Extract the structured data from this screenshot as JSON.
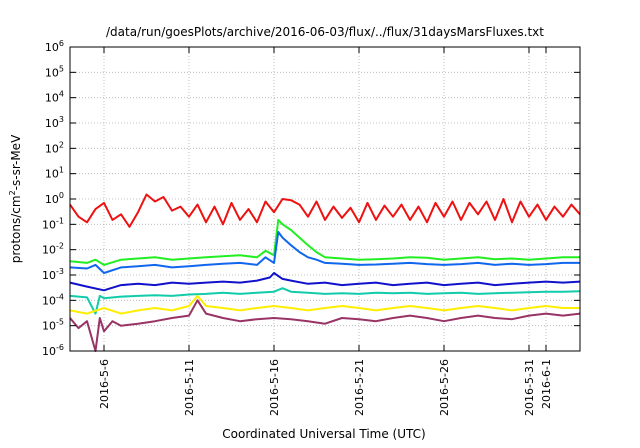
{
  "chart_data": {
    "type": "line",
    "title": "/data/run/goesPlots/archive/2016-06-03/flux/../flux/31daysMarsFluxes.txt",
    "xlabel": "Coordinated Universal Time (UTC)",
    "ylabel_base": "protons/cm",
    "ylabel_sup": "2",
    "ylabel_rest": "-s-sr-MeV",
    "yscale": "log",
    "ylim": [
      1e-06,
      1000000.0
    ],
    "xlim": [
      "2016-05-04",
      "2016-06-03"
    ],
    "grid": true,
    "y_ticks": [
      {
        "value": -6,
        "base": "10",
        "exp": "-6"
      },
      {
        "value": -5,
        "base": "10",
        "exp": "-5"
      },
      {
        "value": -4,
        "base": "10",
        "exp": "-4"
      },
      {
        "value": -3,
        "base": "10",
        "exp": "-3"
      },
      {
        "value": -2,
        "base": "10",
        "exp": "-2"
      },
      {
        "value": -1,
        "base": "10",
        "exp": "-1"
      },
      {
        "value": 0,
        "base": "10",
        "exp": "0"
      },
      {
        "value": 1,
        "base": "10",
        "exp": "1"
      },
      {
        "value": 2,
        "base": "10",
        "exp": "2"
      },
      {
        "value": 3,
        "base": "10",
        "exp": "3"
      },
      {
        "value": 4,
        "base": "10",
        "exp": "4"
      },
      {
        "value": 5,
        "base": "10",
        "exp": "5"
      },
      {
        "value": 6,
        "base": "10",
        "exp": "6"
      }
    ],
    "x_ticks": [
      {
        "date": "2016-05-06",
        "label": "2016-5-6"
      },
      {
        "date": "2016-05-11",
        "label": "2016-5-11"
      },
      {
        "date": "2016-05-16",
        "label": "2016-5-16"
      },
      {
        "date": "2016-05-21",
        "label": "2016-5-21"
      },
      {
        "date": "2016-05-26",
        "label": "2016-5-26"
      },
      {
        "date": "2016-05-31",
        "label": "2016-5-31"
      },
      {
        "date": "2016-06-01",
        "label": "2016-6-1"
      }
    ],
    "series": [
      {
        "color": "#ee1111",
        "width": 2,
        "x": [
          "2016-05-04T00:00",
          "2016-05-04T12:00",
          "2016-05-05T00:00",
          "2016-05-05T12:00",
          "2016-05-06T00:00",
          "2016-05-06T12:00",
          "2016-05-07T00:00",
          "2016-05-07T12:00",
          "2016-05-08T00:00",
          "2016-05-08T12:00",
          "2016-05-09T00:00",
          "2016-05-09T12:00",
          "2016-05-10T00:00",
          "2016-05-10T12:00",
          "2016-05-11T00:00",
          "2016-05-11T12:00",
          "2016-05-12T00:00",
          "2016-05-12T12:00",
          "2016-05-13T00:00",
          "2016-05-13T12:00",
          "2016-05-14T00:00",
          "2016-05-14T12:00",
          "2016-05-15T00:00",
          "2016-05-15T12:00",
          "2016-05-16T00:00",
          "2016-05-16T12:00",
          "2016-05-17T00:00",
          "2016-05-17T12:00",
          "2016-05-18T00:00",
          "2016-05-18T12:00",
          "2016-05-19T00:00",
          "2016-05-19T12:00",
          "2016-05-20T00:00",
          "2016-05-20T12:00",
          "2016-05-21T00:00",
          "2016-05-21T12:00",
          "2016-05-22T00:00",
          "2016-05-22T12:00",
          "2016-05-23T00:00",
          "2016-05-23T12:00",
          "2016-05-24T00:00",
          "2016-05-24T12:00",
          "2016-05-25T00:00",
          "2016-05-25T12:00",
          "2016-05-26T00:00",
          "2016-05-26T12:00",
          "2016-05-27T00:00",
          "2016-05-27T12:00",
          "2016-05-28T00:00",
          "2016-05-28T12:00",
          "2016-05-29T00:00",
          "2016-05-29T12:00",
          "2016-05-30T00:00",
          "2016-05-30T12:00",
          "2016-05-31T00:00",
          "2016-05-31T12:00",
          "2016-06-01T00:00",
          "2016-06-01T12:00",
          "2016-06-02T00:00",
          "2016-06-02T12:00",
          "2016-06-03T00:00"
        ],
        "y": [
          0.6,
          0.2,
          0.12,
          0.4,
          0.7,
          0.15,
          0.25,
          0.08,
          0.3,
          1.5,
          0.8,
          1.2,
          0.35,
          0.5,
          0.2,
          0.6,
          0.12,
          0.5,
          0.1,
          0.7,
          0.15,
          0.4,
          0.12,
          0.8,
          0.3,
          1.0,
          0.9,
          0.6,
          0.2,
          0.8,
          0.15,
          0.5,
          0.18,
          0.45,
          0.12,
          0.7,
          0.15,
          0.55,
          0.2,
          0.6,
          0.15,
          0.5,
          0.12,
          0.7,
          0.2,
          0.8,
          0.15,
          0.7,
          0.25,
          0.8,
          0.15,
          1.0,
          0.12,
          0.8,
          0.2,
          0.6,
          0.15,
          0.5,
          0.2,
          0.6,
          0.25
        ]
      },
      {
        "color": "#22ee22",
        "width": 2,
        "x": [
          "2016-05-04T00:00",
          "2016-05-05T00:00",
          "2016-05-05T12:00",
          "2016-05-06T00:00",
          "2016-05-07T00:00",
          "2016-05-08T00:00",
          "2016-05-09T00:00",
          "2016-05-10T00:00",
          "2016-05-11T00:00",
          "2016-05-12T00:00",
          "2016-05-13T00:00",
          "2016-05-14T00:00",
          "2016-05-15T00:00",
          "2016-05-15T12:00",
          "2016-05-16T00:00",
          "2016-05-16T06:00",
          "2016-05-16T12:00",
          "2016-05-17T00:00",
          "2016-05-17T12:00",
          "2016-05-18T00:00",
          "2016-05-18T12:00",
          "2016-05-19T00:00",
          "2016-05-20T00:00",
          "2016-05-21T00:00",
          "2016-05-22T00:00",
          "2016-05-23T00:00",
          "2016-05-24T00:00",
          "2016-05-25T00:00",
          "2016-05-26T00:00",
          "2016-05-27T00:00",
          "2016-05-28T00:00",
          "2016-05-29T00:00",
          "2016-05-30T00:00",
          "2016-05-31T00:00",
          "2016-06-01T00:00",
          "2016-06-02T00:00",
          "2016-06-03T00:00"
        ],
        "y": [
          0.0035,
          0.003,
          0.004,
          0.0025,
          0.004,
          0.0045,
          0.005,
          0.004,
          0.0045,
          0.005,
          0.0055,
          0.006,
          0.005,
          0.009,
          0.006,
          0.15,
          0.1,
          0.06,
          0.03,
          0.015,
          0.008,
          0.005,
          0.0045,
          0.004,
          0.0042,
          0.0045,
          0.005,
          0.0048,
          0.004,
          0.0045,
          0.005,
          0.0042,
          0.0045,
          0.004,
          0.0045,
          0.005,
          0.005
        ]
      },
      {
        "color": "#1166ee",
        "width": 2,
        "x": [
          "2016-05-04T00:00",
          "2016-05-05T00:00",
          "2016-05-05T12:00",
          "2016-05-06T00:00",
          "2016-05-07T00:00",
          "2016-05-08T00:00",
          "2016-05-09T00:00",
          "2016-05-10T00:00",
          "2016-05-11T00:00",
          "2016-05-12T00:00",
          "2016-05-13T00:00",
          "2016-05-14T00:00",
          "2016-05-15T00:00",
          "2016-05-15T12:00",
          "2016-05-16T00:00",
          "2016-05-16T06:00",
          "2016-05-16T12:00",
          "2016-05-17T00:00",
          "2016-05-17T12:00",
          "2016-05-18T00:00",
          "2016-05-18T12:00",
          "2016-05-19T00:00",
          "2016-05-20T00:00",
          "2016-05-21T00:00",
          "2016-05-22T00:00",
          "2016-05-23T00:00",
          "2016-05-24T00:00",
          "2016-05-25T00:00",
          "2016-05-26T00:00",
          "2016-05-27T00:00",
          "2016-05-28T00:00",
          "2016-05-29T00:00",
          "2016-05-30T00:00",
          "2016-05-31T00:00",
          "2016-06-01T00:00",
          "2016-06-02T00:00",
          "2016-06-03T00:00"
        ],
        "y": [
          0.002,
          0.0018,
          0.0025,
          0.0012,
          0.002,
          0.0022,
          0.0025,
          0.002,
          0.0022,
          0.0025,
          0.0028,
          0.003,
          0.0025,
          0.005,
          0.003,
          0.05,
          0.03,
          0.015,
          0.008,
          0.005,
          0.004,
          0.003,
          0.0028,
          0.0025,
          0.0026,
          0.0028,
          0.003,
          0.0027,
          0.0025,
          0.0027,
          0.003,
          0.0025,
          0.0028,
          0.0025,
          0.0027,
          0.003,
          0.003
        ]
      },
      {
        "color": "#1111cc",
        "width": 2,
        "x": [
          "2016-05-04T00:00",
          "2016-05-05T00:00",
          "2016-05-06T00:00",
          "2016-05-07T00:00",
          "2016-05-08T00:00",
          "2016-05-09T00:00",
          "2016-05-10T00:00",
          "2016-05-11T00:00",
          "2016-05-12T00:00",
          "2016-05-13T00:00",
          "2016-05-14T00:00",
          "2016-05-15T00:00",
          "2016-05-15T18:00",
          "2016-05-16T00:00",
          "2016-05-16T12:00",
          "2016-05-17T00:00",
          "2016-05-18T00:00",
          "2016-05-19T00:00",
          "2016-05-20T00:00",
          "2016-05-21T00:00",
          "2016-05-22T00:00",
          "2016-05-23T00:00",
          "2016-05-24T00:00",
          "2016-05-25T00:00",
          "2016-05-26T00:00",
          "2016-05-27T00:00",
          "2016-05-28T00:00",
          "2016-05-29T00:00",
          "2016-05-30T00:00",
          "2016-05-31T00:00",
          "2016-06-01T00:00",
          "2016-06-02T00:00",
          "2016-06-03T00:00"
        ],
        "y": [
          0.0005,
          0.00035,
          0.00025,
          0.0004,
          0.00045,
          0.0004,
          0.0005,
          0.00045,
          0.0005,
          0.00055,
          0.0005,
          0.0006,
          0.0008,
          0.0012,
          0.0007,
          0.0006,
          0.00045,
          0.0005,
          0.0004,
          0.00045,
          0.0005,
          0.0004,
          0.00045,
          0.0005,
          0.0004,
          0.00045,
          0.0005,
          0.0004,
          0.00045,
          0.0005,
          0.00055,
          0.0005,
          0.00055
        ]
      },
      {
        "color": "#11ccaa",
        "width": 2,
        "x": [
          "2016-05-04T00:00",
          "2016-05-05T00:00",
          "2016-05-05T12:00",
          "2016-05-05T18:00",
          "2016-05-06T00:00",
          "2016-05-07T00:00",
          "2016-05-08T00:00",
          "2016-05-09T00:00",
          "2016-05-10T00:00",
          "2016-05-11T00:00",
          "2016-05-12T00:00",
          "2016-05-13T00:00",
          "2016-05-14T00:00",
          "2016-05-15T00:00",
          "2016-05-16T00:00",
          "2016-05-16T12:00",
          "2016-05-17T00:00",
          "2016-05-18T00:00",
          "2016-05-19T00:00",
          "2016-05-20T00:00",
          "2016-05-21T00:00",
          "2016-05-22T00:00",
          "2016-05-23T00:00",
          "2016-05-24T00:00",
          "2016-05-25T00:00",
          "2016-05-26T00:00",
          "2016-05-27T00:00",
          "2016-05-28T00:00",
          "2016-05-29T00:00",
          "2016-05-30T00:00",
          "2016-05-31T00:00",
          "2016-06-01T00:00",
          "2016-06-02T00:00",
          "2016-06-03T00:00"
        ],
        "y": [
          0.00015,
          0.00013,
          3e-05,
          0.00015,
          0.00012,
          0.00014,
          0.00015,
          0.00016,
          0.00015,
          0.00017,
          0.00018,
          0.0002,
          0.00018,
          0.0002,
          0.00022,
          0.0003,
          0.00022,
          0.0002,
          0.00018,
          0.00019,
          0.00018,
          0.0002,
          0.00019,
          0.0002,
          0.00018,
          0.00019,
          0.0002,
          0.00018,
          0.00019,
          0.0002,
          0.00021,
          0.00022,
          0.00022,
          0.00023
        ]
      },
      {
        "color": "#ffee00",
        "width": 2,
        "x": [
          "2016-05-04T00:00",
          "2016-05-05T00:00",
          "2016-05-06T00:00",
          "2016-05-07T00:00",
          "2016-05-08T00:00",
          "2016-05-09T00:00",
          "2016-05-10T00:00",
          "2016-05-11T00:00",
          "2016-05-11T12:00",
          "2016-05-12T00:00",
          "2016-05-13T00:00",
          "2016-05-14T00:00",
          "2016-05-15T00:00",
          "2016-05-16T00:00",
          "2016-05-17T00:00",
          "2016-05-18T00:00",
          "2016-05-19T00:00",
          "2016-05-20T00:00",
          "2016-05-21T00:00",
          "2016-05-22T00:00",
          "2016-05-23T00:00",
          "2016-05-24T00:00",
          "2016-05-25T00:00",
          "2016-05-26T00:00",
          "2016-05-27T00:00",
          "2016-05-28T00:00",
          "2016-05-29T00:00",
          "2016-05-30T00:00",
          "2016-05-31T00:00",
          "2016-06-01T00:00",
          "2016-06-02T00:00",
          "2016-06-03T00:00"
        ],
        "y": [
          4e-05,
          3e-05,
          5e-05,
          3e-05,
          4e-05,
          5e-05,
          4e-05,
          6e-05,
          0.00015,
          6e-05,
          5e-05,
          4e-05,
          5e-05,
          6e-05,
          5e-05,
          4e-05,
          5e-05,
          6e-05,
          5e-05,
          4e-05,
          5e-05,
          6e-05,
          5e-05,
          4e-05,
          5e-05,
          6e-05,
          5e-05,
          4e-05,
          5e-05,
          6e-05,
          5e-05,
          5e-05
        ]
      },
      {
        "color": "#993366",
        "width": 2,
        "x": [
          "2016-05-04T00:00",
          "2016-05-04T12:00",
          "2016-05-05T00:00",
          "2016-05-05T12:00",
          "2016-05-05T18:00",
          "2016-05-06T00:00",
          "2016-05-06T12:00",
          "2016-05-07T00:00",
          "2016-05-08T00:00",
          "2016-05-09T00:00",
          "2016-05-10T00:00",
          "2016-05-11T00:00",
          "2016-05-11T12:00",
          "2016-05-12T00:00",
          "2016-05-13T00:00",
          "2016-05-14T00:00",
          "2016-05-15T00:00",
          "2016-05-16T00:00",
          "2016-05-17T00:00",
          "2016-05-18T00:00",
          "2016-05-19T00:00",
          "2016-05-20T00:00",
          "2016-05-21T00:00",
          "2016-05-22T00:00",
          "2016-05-23T00:00",
          "2016-05-24T00:00",
          "2016-05-25T00:00",
          "2016-05-26T00:00",
          "2016-05-27T00:00",
          "2016-05-28T00:00",
          "2016-05-29T00:00",
          "2016-05-30T00:00",
          "2016-05-31T00:00",
          "2016-06-01T00:00",
          "2016-06-02T00:00",
          "2016-06-03T00:00"
        ],
        "y": [
          2e-05,
          8e-06,
          1.5e-05,
          1e-06,
          2e-05,
          6e-06,
          1.5e-05,
          1e-05,
          1.2e-05,
          1.5e-05,
          2e-05,
          2.5e-05,
          0.0001,
          3e-05,
          2e-05,
          1.5e-05,
          1.8e-05,
          2e-05,
          1.8e-05,
          1.5e-05,
          1.2e-05,
          2e-05,
          1.8e-05,
          1.5e-05,
          2e-05,
          2.5e-05,
          2e-05,
          1.5e-05,
          2e-05,
          2.5e-05,
          2e-05,
          1.8e-05,
          2.5e-05,
          3e-05,
          2.5e-05,
          3e-05
        ]
      }
    ]
  }
}
